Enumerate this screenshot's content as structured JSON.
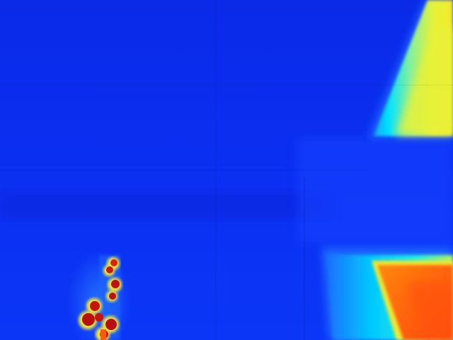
{
  "image": {
    "kind": "thermal-camera-frame",
    "palette": "jet",
    "palette_colors": {
      "cold": "#0a2cf0",
      "cool": "#1a5cff",
      "mid": "#00d8ff",
      "warm": "#e8f040",
      "hot": "#ff6a10",
      "hottest": "#c01010"
    },
    "regions": [
      "upper-right-warm-panel",
      "lower-right-hot-panel",
      "lower-left-hot-spot-cluster"
    ]
  }
}
